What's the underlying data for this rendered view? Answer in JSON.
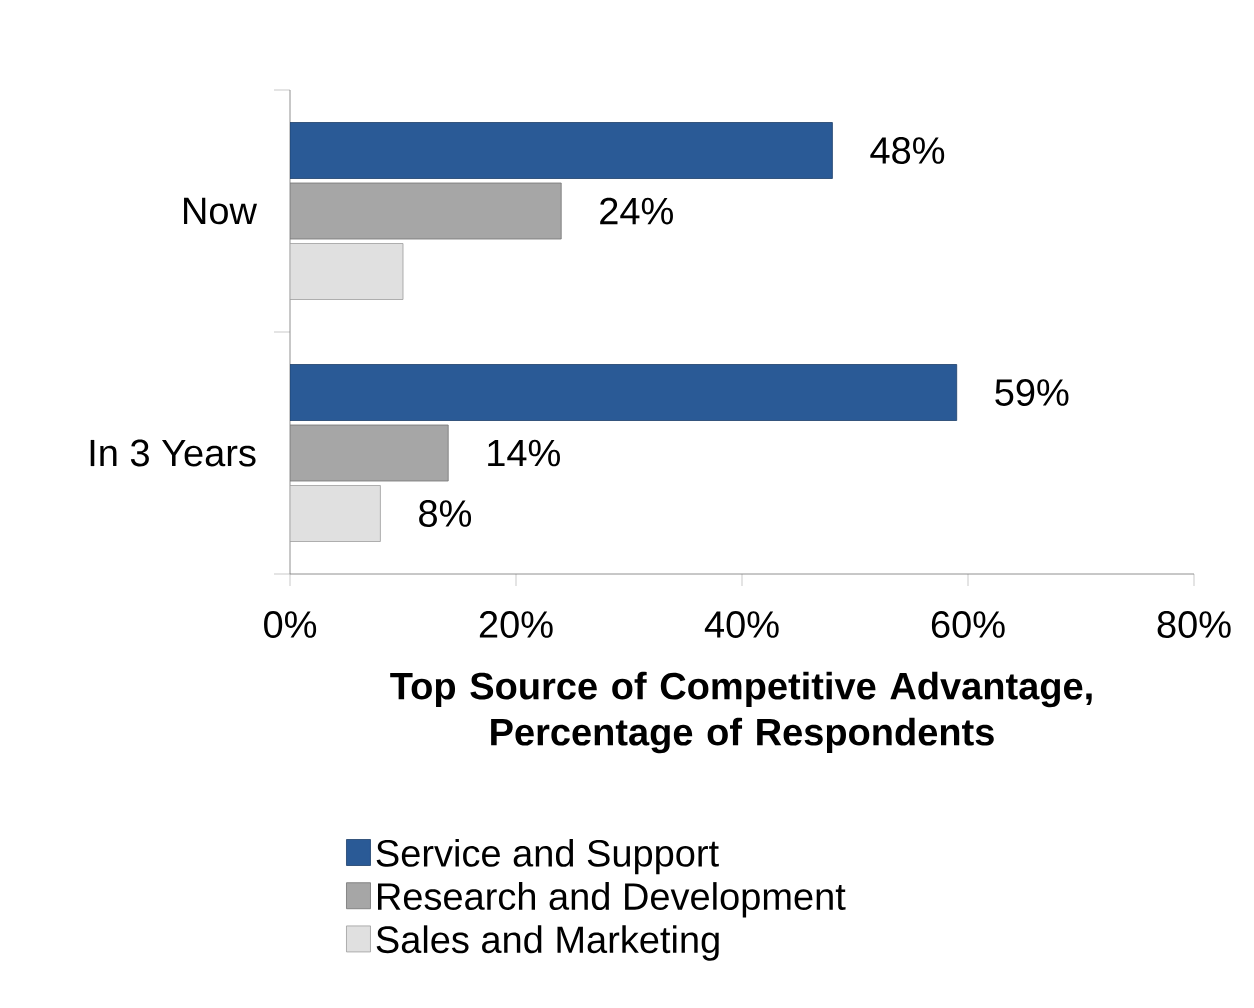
{
  "chart_data": {
    "type": "bar",
    "orientation": "horizontal",
    "categories": [
      "Now",
      "In 3 Years"
    ],
    "series": [
      {
        "name": "Service and Support",
        "color": "#2a5a96",
        "values": [
          48,
          59
        ],
        "value_labels": [
          "48%",
          "59%"
        ]
      },
      {
        "name": "Research and Development",
        "color": "#a6a6a6",
        "values": [
          24,
          14
        ],
        "value_labels": [
          "24%",
          "14%"
        ]
      },
      {
        "name": "Sales and Marketing",
        "color": "#e0e0e0",
        "values": [
          10,
          8
        ],
        "value_labels": [
          null,
          "8%"
        ]
      }
    ],
    "xlabel": "Top Source of Competitive Advantage, Percentage of Respondents",
    "xlim": [
      0,
      80
    ],
    "xticks": [
      {
        "value": 0,
        "label": "0%"
      },
      {
        "value": 20,
        "label": "20%"
      },
      {
        "value": 40,
        "label": "40%"
      },
      {
        "value": 60,
        "label": "60%"
      },
      {
        "value": 80,
        "label": "80%"
      }
    ],
    "grid": false,
    "legend": "bottom"
  }
}
